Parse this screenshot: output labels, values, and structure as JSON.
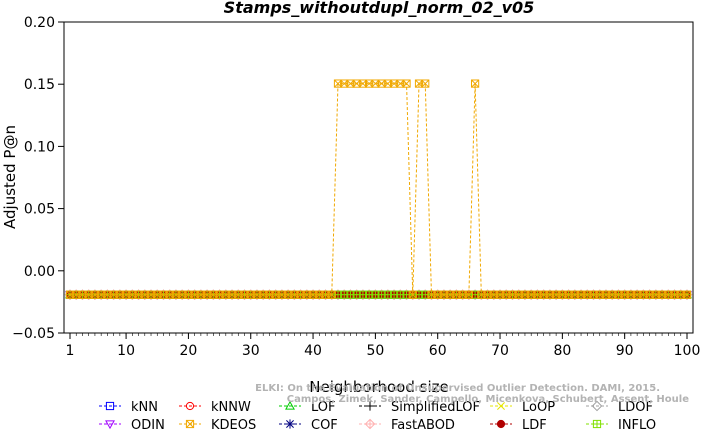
{
  "chart_data": {
    "type": "line",
    "title": "Stamps_withoutdupl_norm_02_v05",
    "xlabel": "Neighborhood size",
    "ylabel": "Adjusted P@n",
    "xlim": [
      1,
      100
    ],
    "ylim": [
      -0.05,
      0.2
    ],
    "xticks": [
      1,
      10,
      20,
      30,
      40,
      50,
      60,
      70,
      80,
      90,
      100
    ],
    "yticks": [
      -0.05,
      0.0,
      0.05,
      0.1,
      0.15,
      0.2
    ],
    "ytick_labels": [
      "−0.05",
      "0.00",
      "0.05",
      "0.10",
      "0.15",
      "0.20"
    ],
    "grid": false,
    "legend_position": "bottom",
    "baseline_value": -0.0192,
    "series": [
      {
        "name": "kNN",
        "color": "#0000ff",
        "marker": "square",
        "constant": -0.0192
      },
      {
        "name": "kNNW",
        "color": "#ff0000",
        "marker": "circle",
        "constant": -0.0192
      },
      {
        "name": "LOF",
        "color": "#00cc00",
        "marker": "triangle-up",
        "constant": -0.0192
      },
      {
        "name": "SimplifiedLOF",
        "color": "#000000",
        "marker": "plus",
        "constant": -0.0192
      },
      {
        "name": "LoOP",
        "color": "#e5e500",
        "marker": "x",
        "constant": -0.0192
      },
      {
        "name": "LDOF",
        "color": "#a0a0a0",
        "marker": "diamond",
        "constant": -0.0192
      },
      {
        "name": "ODIN",
        "color": "#a000ff",
        "marker": "triangle-down",
        "constant": -0.0192
      },
      {
        "name": "KDEOS",
        "color": "#f0a800",
        "marker": "square-x",
        "constant": -0.0192,
        "peaks": [
          {
            "k_from": 44,
            "k_to": 55,
            "value": 0.1505
          },
          {
            "k_from": 57,
            "k_to": 58,
            "value": 0.1505
          },
          {
            "k_from": 66,
            "k_to": 66,
            "value": 0.1505
          }
        ]
      },
      {
        "name": "COF",
        "color": "#000080",
        "marker": "asterisk",
        "constant": -0.0192
      },
      {
        "name": "FastABOD",
        "color": "#ffb0b0",
        "marker": "diamond-plus",
        "constant": -0.0192
      },
      {
        "name": "LDF",
        "color": "#b00000",
        "marker": "circle-filled",
        "constant": -0.0192
      },
      {
        "name": "INFLO",
        "color": "#80e000",
        "marker": "square-star",
        "constant": -0.0192
      }
    ]
  },
  "watermark": {
    "line1": "ELKI: On the Evaluation of Unsupervised Outlier Detection. DAMI, 2015.",
    "line2": "Campos, Zimek, Sander, Campello, Micenkova, Schubert, Assent, Houle"
  }
}
